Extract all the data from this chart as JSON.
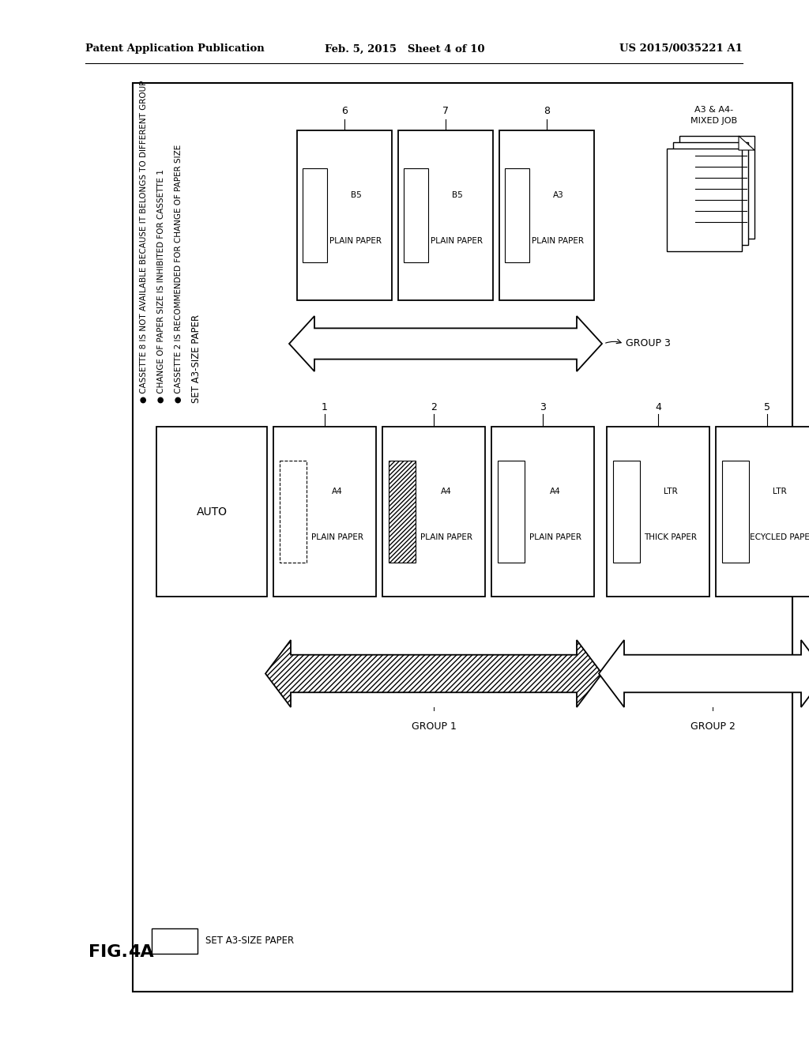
{
  "header_left": "Patent Application Publication",
  "header_mid": "Feb. 5, 2015   Sheet 4 of 10",
  "header_right": "US 2015/0035221 A1",
  "fig_label": "FIG. 4A",
  "title_text": "SET A3-SIZE PAPER",
  "bullet1": "CASSETTE 2 IS RECOMMENDED FOR CHANGE OF PAPER SIZE",
  "bullet2": "CHANGE OF PAPER SIZE IS INHIBITED FOR CASSETTE 1",
  "bullet3": "CASSETTE 8 IS NOT AVAILABLE BECAUSE IT BELONGS TO DIFFERENT GROUP",
  "auto_label": "AUTO",
  "group1_label": "GROUP 1",
  "group2_label": "GROUP 2",
  "group3_label": "GROUP 3",
  "job_label1": "A3 & A4-",
  "job_label2": "MIXED JOB",
  "legend_label": "SET A3-SIZE PAPER"
}
